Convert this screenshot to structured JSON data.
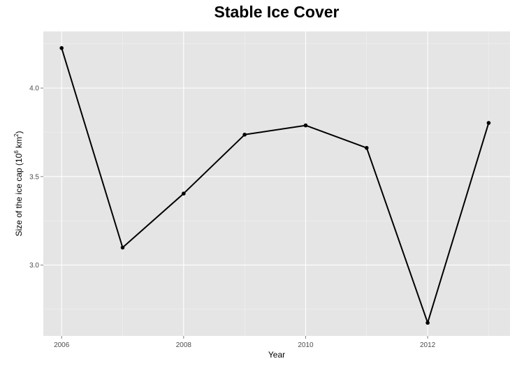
{
  "chart_data": {
    "type": "line",
    "title": "Stable Ice Cover",
    "xlabel": "Year",
    "ylabel": "Size of the ice cap (10^6 km^2)",
    "ylabel_parts": {
      "prefix": "Size of the ice cap (10",
      "exp1": "6",
      "mid": " km",
      "exp2": "2",
      "suffix": ")"
    },
    "x": [
      2006,
      2007,
      2008,
      2009,
      2010,
      2011,
      2012,
      2013
    ],
    "y": [
      4.226,
      3.099,
      3.404,
      3.737,
      3.789,
      3.662,
      2.674,
      3.803
    ],
    "xlim": [
      2005.7,
      2013.35
    ],
    "ylim": [
      2.6,
      4.32
    ],
    "x_ticks": [
      "2006",
      "2008",
      "2010",
      "2012"
    ],
    "y_ticks": [
      "3.0",
      "3.5",
      "4.0"
    ],
    "grid": true,
    "colors": {
      "panel": "#e5e5e5",
      "grid": "#ffffff",
      "line": "#000000"
    }
  }
}
